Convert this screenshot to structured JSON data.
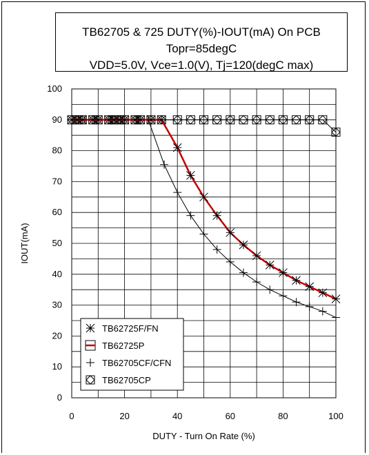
{
  "chart_data": {
    "type": "line",
    "title": "TB62705 & 725 DUTY(%)-IOUT(mA) On PCB",
    "subtitle_line2": "Topr=85degC",
    "subtitle_line3": "VDD=5.0V, Vce=1.0(V), Tj=120(degC max)",
    "xlabel": "DUTY - Turn On Rate (%)",
    "ylabel": "IOUT(mA)",
    "xlim": [
      0,
      100
    ],
    "ylim": [
      0,
      100
    ],
    "x_ticks": [
      "0",
      "20",
      "40",
      "60",
      "80",
      "100"
    ],
    "y_ticks": [
      "0",
      "10",
      "20",
      "30",
      "40",
      "50",
      "60",
      "70",
      "80",
      "90",
      "100"
    ],
    "grid": true,
    "legend_position": "bottom-left",
    "series": [
      {
        "name": "TB62725F/FN",
        "marker": "asterisk",
        "color": "#000000",
        "line": false,
        "x": [
          0,
          2,
          4,
          8,
          10,
          14,
          16,
          18,
          20,
          24,
          26,
          30,
          34,
          40,
          45,
          50,
          55,
          60,
          65,
          70,
          75,
          80,
          85,
          90,
          95,
          100
        ],
        "y": [
          90,
          90,
          90,
          90,
          90,
          90,
          90,
          90,
          90,
          90,
          90,
          90,
          90,
          81,
          72,
          65,
          59,
          53.5,
          49.5,
          46,
          43,
          40.5,
          38,
          36,
          34,
          32
        ]
      },
      {
        "name": "TB62725P",
        "marker": "line",
        "color": "#c00000",
        "line": true,
        "x": [
          0,
          10,
          20,
          30,
          34,
          40,
          45,
          50,
          55,
          60,
          65,
          70,
          75,
          80,
          85,
          90,
          95,
          100
        ],
        "y": [
          90,
          90,
          90,
          90,
          90,
          81,
          72,
          65,
          59,
          53.5,
          49.5,
          46,
          43,
          40.5,
          38,
          36,
          34,
          32
        ]
      },
      {
        "name": "TB62705CF/CFN",
        "marker": "plus",
        "color": "#000000",
        "line": true,
        "x": [
          0,
          5,
          10,
          15,
          20,
          25,
          29,
          35,
          40,
          45,
          50,
          55,
          60,
          65,
          70,
          75,
          80,
          85,
          90,
          95,
          100
        ],
        "y": [
          90,
          90,
          90,
          90,
          90,
          90,
          90,
          75.5,
          66.5,
          59,
          53,
          48,
          44,
          40.5,
          37.5,
          35,
          33,
          31,
          29.5,
          28,
          26
        ]
      },
      {
        "name": "TB62705CP",
        "marker": "diamond-in-square",
        "color": "#000000",
        "line": true,
        "x": [
          0,
          2,
          4,
          8,
          10,
          14,
          16,
          18,
          20,
          24,
          26,
          30,
          34,
          40,
          45,
          50,
          55,
          60,
          65,
          70,
          75,
          80,
          85,
          90,
          95,
          100
        ],
        "y": [
          90,
          90,
          90,
          90,
          90,
          90,
          90,
          90,
          90,
          90,
          90,
          90,
          90,
          90,
          90,
          90,
          90,
          90,
          90,
          90,
          90,
          90,
          90,
          90,
          90,
          86
        ]
      }
    ]
  }
}
